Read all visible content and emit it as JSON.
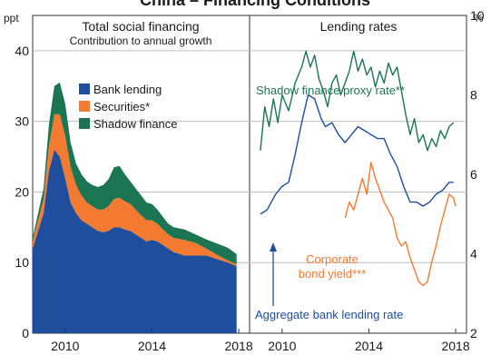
{
  "title": "China – Financing Conditions",
  "left_units": "ppt",
  "right_units": "%",
  "chart_data": [
    {
      "type": "area",
      "title": "Total social financing",
      "subtitle": "Contribution to annual growth",
      "ylim": [
        0,
        45
      ],
      "y_ticks": [
        0,
        10,
        20,
        30,
        40
      ],
      "xlim": [
        2008.5,
        2018.5
      ],
      "x_ticks": [
        2010,
        2014,
        2018
      ],
      "stacked": true,
      "legend_placement": "top-left",
      "x": [
        2008.5,
        2009.0,
        2009.25,
        2009.5,
        2009.75,
        2010.0,
        2010.25,
        2010.5,
        2010.75,
        2011.0,
        2011.25,
        2011.5,
        2011.75,
        2012.0,
        2012.25,
        2012.5,
        2012.75,
        2013.0,
        2013.25,
        2013.5,
        2013.75,
        2014.0,
        2014.25,
        2014.5,
        2014.75,
        2015.0,
        2015.5,
        2016.0,
        2016.5,
        2017.0,
        2017.5,
        2017.9
      ],
      "series": [
        {
          "name": "Bank lending",
          "color": "#1f4e9c",
          "values": [
            12,
            17,
            23,
            26,
            25,
            22,
            18.5,
            17,
            16,
            15.5,
            15,
            14.5,
            14.3,
            14.5,
            15,
            15,
            14.7,
            14.5,
            14,
            13.5,
            13,
            13.2,
            13,
            12.5,
            12,
            11.5,
            11,
            11,
            11,
            10.5,
            10,
            9.5
          ]
        },
        {
          "name": "Securities*",
          "color": "#f47a31",
          "values": [
            1,
            2,
            3.5,
            5,
            6,
            6,
            5,
            4,
            3.5,
            3,
            3,
            3,
            3.2,
            3.5,
            4,
            4.2,
            4,
            3.8,
            3.5,
            3.2,
            3,
            2.8,
            2.5,
            2.2,
            2,
            2,
            2.2,
            1.8,
            1,
            0.6,
            0.3,
            0.3
          ]
        },
        {
          "name": "Shadow finance",
          "color": "#1b7552",
          "values": [
            0.5,
            1.5,
            3,
            4,
            4.5,
            4.5,
            3.5,
            3,
            3,
            3,
            3,
            3.2,
            3.5,
            3.8,
            4.5,
            4.5,
            3.8,
            3.2,
            3,
            2.8,
            2.5,
            2.3,
            2,
            1.8,
            1.5,
            1.5,
            1.5,
            1.2,
            1.3,
            1.6,
            1.8,
            1.4
          ]
        }
      ]
    },
    {
      "type": "line",
      "title": "Lending rates",
      "ylim": [
        2,
        10
      ],
      "y_ticks": [
        2,
        4,
        6,
        8,
        10
      ],
      "xlim": [
        2008.5,
        2018.5
      ],
      "x_ticks": [
        2010,
        2014,
        2018
      ],
      "series": [
        {
          "name": "Shadow finance proxy rate**",
          "color": "#1b7552",
          "x": [
            2009.0,
            2009.2,
            2009.4,
            2009.6,
            2009.8,
            2010.0,
            2010.3,
            2010.6,
            2010.9,
            2011.1,
            2011.3,
            2011.5,
            2011.7,
            2011.9,
            2012.1,
            2012.3,
            2012.5,
            2012.7,
            2012.9,
            2013.1,
            2013.3,
            2013.5,
            2013.7,
            2013.9,
            2014.1,
            2014.3,
            2014.5,
            2014.7,
            2014.9,
            2015.1,
            2015.3,
            2015.5,
            2015.7,
            2015.9,
            2016.1,
            2016.3,
            2016.5,
            2016.7,
            2016.9,
            2017.1,
            2017.3,
            2017.5,
            2017.7,
            2017.9
          ],
          "values": [
            6.6,
            7.7,
            7.2,
            7.9,
            7.3,
            8.0,
            7.6,
            8.3,
            8.7,
            9.1,
            8.7,
            9.0,
            8.4,
            8.1,
            7.7,
            8.3,
            8.5,
            8.0,
            8.3,
            8.6,
            9.1,
            8.6,
            8.9,
            8.5,
            8.7,
            8.2,
            8.6,
            8.3,
            8.8,
            8.5,
            8.7,
            8.1,
            7.5,
            7.0,
            7.4,
            6.8,
            7.0,
            6.6,
            6.9,
            6.7,
            7.1,
            6.9,
            7.2,
            7.3
          ]
        },
        {
          "name": "Aggregate bank lending rate",
          "color": "#1f4e9c",
          "x": [
            2009.0,
            2009.3,
            2009.7,
            2010.0,
            2010.3,
            2010.6,
            2010.9,
            2011.2,
            2011.5,
            2011.8,
            2012.0,
            2012.3,
            2012.6,
            2012.9,
            2013.2,
            2013.5,
            2013.8,
            2014.1,
            2014.4,
            2014.7,
            2015.0,
            2015.3,
            2015.6,
            2015.9,
            2016.2,
            2016.5,
            2016.8,
            2017.1,
            2017.4,
            2017.7,
            2017.9
          ],
          "values": [
            5.0,
            5.1,
            5.5,
            5.7,
            5.8,
            6.5,
            7.3,
            8.0,
            7.9,
            7.4,
            7.2,
            7.3,
            7.0,
            6.8,
            7.0,
            7.2,
            7.1,
            7.0,
            6.9,
            6.9,
            6.5,
            6.2,
            5.7,
            5.3,
            5.3,
            5.2,
            5.3,
            5.5,
            5.6,
            5.8,
            5.8
          ]
        },
        {
          "name": "Corporate bond yield***",
          "color": "#f47a31",
          "x": [
            2012.9,
            2013.1,
            2013.3,
            2013.5,
            2013.7,
            2013.9,
            2014.1,
            2014.3,
            2014.5,
            2014.7,
            2014.9,
            2015.1,
            2015.3,
            2015.5,
            2015.7,
            2015.9,
            2016.1,
            2016.3,
            2016.5,
            2016.7,
            2016.9,
            2017.1,
            2017.3,
            2017.5,
            2017.7,
            2017.9,
            2018.0
          ],
          "values": [
            4.9,
            5.3,
            5.1,
            5.5,
            5.9,
            5.5,
            6.3,
            5.9,
            5.6,
            5.3,
            5.1,
            4.9,
            4.4,
            4.2,
            4.3,
            3.9,
            3.6,
            3.3,
            3.2,
            3.3,
            3.8,
            4.2,
            4.7,
            5.1,
            5.5,
            5.4,
            5.2
          ]
        }
      ],
      "annotations": [
        "Aggregate bank lending rate"
      ]
    }
  ]
}
